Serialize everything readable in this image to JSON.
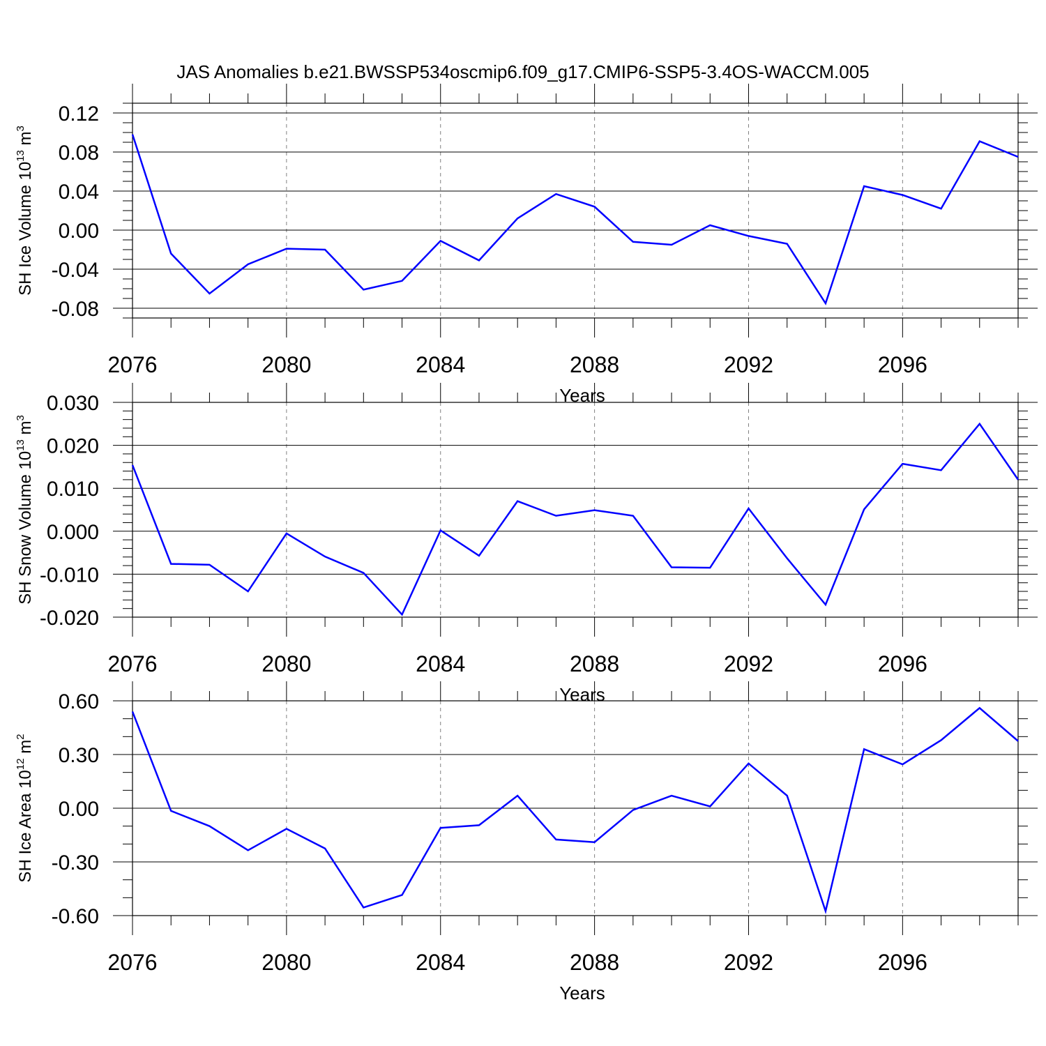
{
  "title": "JAS Anomalies b.e21.BWSSP534oscmip6.f09_g17.CMIP6-SSP5-3.4OS-WACCM.005",
  "colors": {
    "series": "#0000ff",
    "axis": "#000000",
    "grid": "#808080"
  },
  "chart_data": [
    {
      "type": "line",
      "xlabel": "Years",
      "ylabel": {
        "text": "SH Ice Volume 10",
        "exp": "13",
        "unit": "m",
        "unit_exp": "3"
      },
      "x": [
        2076,
        2077,
        2078,
        2079,
        2080,
        2081,
        2082,
        2083,
        2084,
        2085,
        2086,
        2087,
        2088,
        2089,
        2090,
        2091,
        2092,
        2093,
        2094,
        2095,
        2096,
        2097,
        2098,
        2099
      ],
      "series": [
        {
          "name": "SH Ice Volume",
          "values": [
            0.098,
            -0.024,
            -0.065,
            -0.035,
            -0.019,
            -0.02,
            -0.061,
            -0.052,
            -0.011,
            -0.031,
            0.012,
            0.037,
            0.024,
            -0.012,
            -0.015,
            0.005,
            -0.006,
            -0.014,
            -0.075,
            0.045,
            0.036,
            0.022,
            0.091,
            0.075
          ]
        }
      ],
      "xlim": [
        2076,
        2099
      ],
      "ylim": [
        -0.09,
        0.13
      ],
      "yticks": [
        -0.08,
        -0.04,
        0.0,
        0.04,
        0.08,
        0.12
      ],
      "ytick_labels": [
        "-0.08",
        "-0.04",
        "0.00",
        "0.04",
        "0.08",
        "0.12"
      ],
      "yminor": [
        -0.09,
        -0.07,
        -0.06,
        -0.05,
        -0.03,
        -0.02,
        -0.01,
        0.01,
        0.02,
        0.03,
        0.05,
        0.06,
        0.07,
        0.09,
        0.1,
        0.11,
        0.13
      ],
      "xticks": [
        2076,
        2080,
        2084,
        2088,
        2092,
        2096
      ],
      "xtick_labels": [
        "2076",
        "2080",
        "2084",
        "2088",
        "2092",
        "2096"
      ],
      "xminor": [
        2077,
        2078,
        2079,
        2081,
        2082,
        2083,
        2085,
        2086,
        2087,
        2089,
        2090,
        2091,
        2093,
        2094,
        2095,
        2097,
        2098,
        2099
      ],
      "grid_x": [
        2080,
        2084,
        2088,
        2092,
        2096
      ]
    },
    {
      "type": "line",
      "xlabel": "Years",
      "ylabel": {
        "text": "SH Snow Volume 10",
        "exp": "13",
        "unit": "m",
        "unit_exp": "3"
      },
      "x": [
        2076,
        2077,
        2078,
        2079,
        2080,
        2081,
        2082,
        2083,
        2084,
        2085,
        2086,
        2087,
        2088,
        2089,
        2090,
        2091,
        2092,
        2093,
        2094,
        2095,
        2096,
        2097,
        2098,
        2099
      ],
      "series": [
        {
          "name": "SH Snow Volume",
          "values": [
            0.0154,
            -0.0076,
            -0.0078,
            -0.014,
            -0.0005,
            -0.0059,
            -0.0097,
            -0.0194,
            0.0002,
            -0.0057,
            0.007,
            0.0036,
            0.0049,
            0.0036,
            -0.0084,
            -0.0085,
            0.0053,
            -0.0063,
            -0.0171,
            0.0051,
            0.0157,
            0.0142,
            0.025,
            0.012
          ]
        }
      ],
      "xlim": [
        2076,
        2099
      ],
      "ylim": [
        -0.02,
        0.03
      ],
      "yticks": [
        -0.02,
        -0.01,
        0.0,
        0.01,
        0.02,
        0.03
      ],
      "ytick_labels": [
        "-0.020",
        "-0.010",
        "0.000",
        "0.010",
        "0.020",
        "0.030"
      ],
      "yminor": [
        -0.018,
        -0.016,
        -0.014,
        -0.012,
        -0.008,
        -0.006,
        -0.004,
        -0.002,
        0.002,
        0.004,
        0.006,
        0.008,
        0.012,
        0.014,
        0.016,
        0.018,
        0.022,
        0.024,
        0.026,
        0.028
      ],
      "xticks": [
        2076,
        2080,
        2084,
        2088,
        2092,
        2096
      ],
      "xtick_labels": [
        "2076",
        "2080",
        "2084",
        "2088",
        "2092",
        "2096"
      ],
      "xminor": [
        2077,
        2078,
        2079,
        2081,
        2082,
        2083,
        2085,
        2086,
        2087,
        2089,
        2090,
        2091,
        2093,
        2094,
        2095,
        2097,
        2098,
        2099
      ],
      "grid_x": [
        2080,
        2084,
        2088,
        2092,
        2096
      ]
    },
    {
      "type": "line",
      "xlabel": "Years",
      "ylabel": {
        "text": "SH Ice Area 10",
        "exp": "12",
        "unit": "m",
        "unit_exp": "2"
      },
      "x": [
        2076,
        2077,
        2078,
        2079,
        2080,
        2081,
        2082,
        2083,
        2084,
        2085,
        2086,
        2087,
        2088,
        2089,
        2090,
        2091,
        2092,
        2093,
        2094,
        2095,
        2096,
        2097,
        2098,
        2099
      ],
      "series": [
        {
          "name": "SH Ice Area",
          "values": [
            0.54,
            -0.015,
            -0.1,
            -0.235,
            -0.115,
            -0.225,
            -0.555,
            -0.485,
            -0.11,
            -0.095,
            0.07,
            -0.175,
            -0.19,
            -0.01,
            0.07,
            0.01,
            0.25,
            0.07,
            -0.575,
            0.33,
            0.245,
            0.38,
            0.56,
            0.375
          ]
        }
      ],
      "xlim": [
        2076,
        2099
      ],
      "ylim": [
        -0.6,
        0.6
      ],
      "yticks": [
        -0.6,
        -0.3,
        0.0,
        0.3,
        0.6
      ],
      "ytick_labels": [
        "-0.60",
        "-0.30",
        "0.00",
        "0.30",
        "0.60"
      ],
      "yminor": [
        -0.5,
        -0.4,
        -0.2,
        -0.1,
        0.1,
        0.2,
        0.4,
        0.5
      ],
      "xticks": [
        2076,
        2080,
        2084,
        2088,
        2092,
        2096
      ],
      "xtick_labels": [
        "2076",
        "2080",
        "2084",
        "2088",
        "2092",
        "2096"
      ],
      "xminor": [
        2077,
        2078,
        2079,
        2081,
        2082,
        2083,
        2085,
        2086,
        2087,
        2089,
        2090,
        2091,
        2093,
        2094,
        2095,
        2097,
        2098,
        2099
      ],
      "grid_x": [
        2080,
        2084,
        2088,
        2092,
        2096
      ]
    }
  ]
}
